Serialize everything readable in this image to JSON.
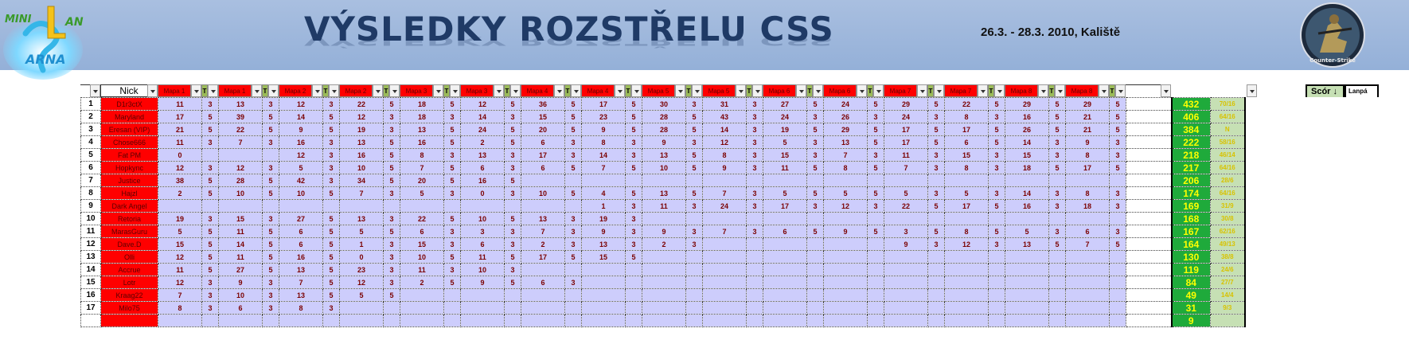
{
  "header": {
    "title": "VÝSLEDKY ROZSTŘELU CSS",
    "date": "26.3. - 28.3. 2010, Kaliště",
    "logo_text": "MINI LAN ARNA",
    "emblem_text": "Counter-Strike"
  },
  "colors": {
    "banner": "#a9bfe0",
    "title": "#1f3a66",
    "nick_cell": "#ff0000",
    "data_cell": "#cdcdfc",
    "score_cell": "#1faa3b",
    "score_text": "#ffff00",
    "lanpa_cell": "#c6e0b4"
  },
  "columns": {
    "nick": "Nick",
    "maps": [
      "Mapa 1",
      "Mapa 1",
      "Mapa 2",
      "Mapa 2",
      "Mapa 3",
      "Mapa 3",
      "Mapa 4",
      "Mapa 4",
      "Mapa 5",
      "Mapa 5",
      "Mapa 6",
      "Mapa 6",
      "Mapa 7",
      "Mapa 7",
      "Mapa 8",
      "Mapa 8"
    ],
    "t": "T",
    "score": "Scór",
    "lanpa": "Lanpá",
    "sort_icon": "↓"
  },
  "rows": [
    {
      "rank": "1",
      "nick": "D1r3ctX",
      "maps": [
        [
          "11",
          "3"
        ],
        [
          "13",
          "3"
        ],
        [
          "12",
          "3"
        ],
        [
          "22",
          "5"
        ],
        [
          "18",
          "5"
        ],
        [
          "12",
          "5"
        ],
        [
          "36",
          "5"
        ],
        [
          "17",
          "5"
        ],
        [
          "30",
          "3"
        ],
        [
          "31",
          "3"
        ],
        [
          "27",
          "5"
        ],
        [
          "24",
          "5"
        ],
        [
          "29",
          "5"
        ],
        [
          "22",
          "5"
        ],
        [
          "29",
          "5"
        ],
        [
          "29",
          "5"
        ]
      ],
      "score": "432",
      "lanpa": "70/16"
    },
    {
      "rank": "2",
      "nick": "Maryland",
      "maps": [
        [
          "17",
          "5"
        ],
        [
          "39",
          "5"
        ],
        [
          "14",
          "5"
        ],
        [
          "12",
          "3"
        ],
        [
          "18",
          "3"
        ],
        [
          "14",
          "3"
        ],
        [
          "15",
          "5"
        ],
        [
          "23",
          "5"
        ],
        [
          "28",
          "5"
        ],
        [
          "43",
          "3"
        ],
        [
          "24",
          "3"
        ],
        [
          "26",
          "3"
        ],
        [
          "24",
          "3"
        ],
        [
          "8",
          "3"
        ],
        [
          "16",
          "5"
        ],
        [
          "21",
          "5"
        ]
      ],
      "score": "406",
      "lanpa": "64/16"
    },
    {
      "rank": "3",
      "nick": "Eresan (VIP)",
      "maps": [
        [
          "21",
          "5"
        ],
        [
          "22",
          "5"
        ],
        [
          "9",
          "5"
        ],
        [
          "19",
          "3"
        ],
        [
          "13",
          "5"
        ],
        [
          "24",
          "5"
        ],
        [
          "20",
          "5"
        ],
        [
          "9",
          "5"
        ],
        [
          "28",
          "5"
        ],
        [
          "14",
          "3"
        ],
        [
          "19",
          "5"
        ],
        [
          "29",
          "5"
        ],
        [
          "17",
          "5"
        ],
        [
          "17",
          "5"
        ],
        [
          "26",
          "5"
        ],
        [
          "21",
          "5"
        ]
      ],
      "score": "384",
      "lanpa": "N"
    },
    {
      "rank": "4",
      "nick": "Chose666",
      "maps": [
        [
          "11",
          "3"
        ],
        [
          "7",
          "3"
        ],
        [
          "16",
          "3"
        ],
        [
          "13",
          "5"
        ],
        [
          "16",
          "5"
        ],
        [
          "2",
          "5"
        ],
        [
          "6",
          "3"
        ],
        [
          "8",
          "3"
        ],
        [
          "9",
          "3"
        ],
        [
          "12",
          "3"
        ],
        [
          "5",
          "3"
        ],
        [
          "13",
          "5"
        ],
        [
          "17",
          "5"
        ],
        [
          "6",
          "5"
        ],
        [
          "14",
          "3"
        ],
        [
          "9",
          "3"
        ]
      ],
      "score": "222",
      "lanpa": "58/16"
    },
    {
      "rank": "5",
      "nick": "Fat PM",
      "maps": [
        [
          "0",
          ""
        ],
        [
          "",
          ""
        ],
        [
          "12",
          "3"
        ],
        [
          "16",
          "5"
        ],
        [
          "8",
          "3"
        ],
        [
          "13",
          "3"
        ],
        [
          "17",
          "3"
        ],
        [
          "14",
          "3"
        ],
        [
          "13",
          "5"
        ],
        [
          "8",
          "3"
        ],
        [
          "15",
          "3"
        ],
        [
          "7",
          "3"
        ],
        [
          "11",
          "3"
        ],
        [
          "15",
          "3"
        ],
        [
          "15",
          "3"
        ],
        [
          "8",
          "3"
        ]
      ],
      "score": "218",
      "lanpa": "46/14"
    },
    {
      "rank": "6",
      "nick": "Hopkync",
      "maps": [
        [
          "12",
          "3"
        ],
        [
          "12",
          "3"
        ],
        [
          "5",
          "3"
        ],
        [
          "10",
          "5"
        ],
        [
          "7",
          "5"
        ],
        [
          "6",
          "3"
        ],
        [
          "6",
          "5"
        ],
        [
          "7",
          "5"
        ],
        [
          "10",
          "5"
        ],
        [
          "9",
          "3"
        ],
        [
          "11",
          "5"
        ],
        [
          "8",
          "5"
        ],
        [
          "7",
          "3"
        ],
        [
          "8",
          "3"
        ],
        [
          "18",
          "5"
        ],
        [
          "17",
          "5"
        ]
      ],
      "score": "217",
      "lanpa": "64/16"
    },
    {
      "rank": "7",
      "nick": "Justice",
      "maps": [
        [
          "38",
          "5"
        ],
        [
          "28",
          "5"
        ],
        [
          "42",
          "3"
        ],
        [
          "34",
          "5"
        ],
        [
          "20",
          "5"
        ],
        [
          "16",
          "5"
        ],
        [
          "",
          ""
        ],
        [
          "",
          ""
        ],
        [
          "",
          ""
        ],
        [
          "",
          ""
        ],
        [
          "",
          ""
        ],
        [
          "",
          ""
        ],
        [
          "",
          ""
        ],
        [
          "",
          ""
        ],
        [
          "",
          ""
        ],
        [
          "",
          ""
        ]
      ],
      "score": "206",
      "lanpa": "28/6"
    },
    {
      "rank": "8",
      "nick": "Hajzl",
      "maps": [
        [
          "2",
          "5"
        ],
        [
          "10",
          "5"
        ],
        [
          "10",
          "5"
        ],
        [
          "7",
          "3"
        ],
        [
          "5",
          "3"
        ],
        [
          "0",
          "3"
        ],
        [
          "10",
          "5"
        ],
        [
          "4",
          "5"
        ],
        [
          "13",
          "5"
        ],
        [
          "7",
          "3"
        ],
        [
          "5",
          "5"
        ],
        [
          "5",
          "5"
        ],
        [
          "5",
          "3"
        ],
        [
          "5",
          "3"
        ],
        [
          "14",
          "3"
        ],
        [
          "8",
          "3"
        ]
      ],
      "score": "174",
      "lanpa": "64/16"
    },
    {
      "rank": "9",
      "nick": "Dark Angel",
      "maps": [
        [
          "",
          ""
        ],
        [
          "",
          ""
        ],
        [
          "",
          ""
        ],
        [
          "",
          ""
        ],
        [
          "",
          ""
        ],
        [
          "",
          ""
        ],
        [
          "",
          ""
        ],
        [
          "1",
          "3"
        ],
        [
          "11",
          "3"
        ],
        [
          "24",
          "3"
        ],
        [
          "17",
          "3"
        ],
        [
          "12",
          "3"
        ],
        [
          "22",
          "5"
        ],
        [
          "17",
          "5"
        ],
        [
          "16",
          "3"
        ],
        [
          "18",
          "3"
        ]
      ],
      "score": "169",
      "lanpa": "31/9"
    },
    {
      "rank": "10",
      "nick": "Retoria",
      "maps": [
        [
          "19",
          "3"
        ],
        [
          "15",
          "3"
        ],
        [
          "27",
          "5"
        ],
        [
          "13",
          "3"
        ],
        [
          "22",
          "5"
        ],
        [
          "10",
          "5"
        ],
        [
          "13",
          "3"
        ],
        [
          "19",
          "3"
        ],
        [
          "",
          ""
        ],
        [
          "",
          ""
        ],
        [
          "",
          ""
        ],
        [
          "",
          ""
        ],
        [
          "",
          ""
        ],
        [
          "",
          ""
        ],
        [
          "",
          ""
        ],
        [
          "",
          ""
        ]
      ],
      "score": "168",
      "lanpa": "30/8"
    },
    {
      "rank": "11",
      "nick": "MarasGuru",
      "maps": [
        [
          "5",
          "5"
        ],
        [
          "11",
          "5"
        ],
        [
          "6",
          "5"
        ],
        [
          "5",
          "5"
        ],
        [
          "6",
          "3"
        ],
        [
          "3",
          "3"
        ],
        [
          "7",
          "3"
        ],
        [
          "9",
          "3"
        ],
        [
          "9",
          "3"
        ],
        [
          "7",
          "3"
        ],
        [
          "6",
          "5"
        ],
        [
          "9",
          "5"
        ],
        [
          "3",
          "5"
        ],
        [
          "8",
          "5"
        ],
        [
          "5",
          "3"
        ],
        [
          "6",
          "3"
        ]
      ],
      "score": "167",
      "lanpa": "62/16"
    },
    {
      "rank": "12",
      "nick": "Dave.D",
      "maps": [
        [
          "15",
          "5"
        ],
        [
          "14",
          "5"
        ],
        [
          "6",
          "5"
        ],
        [
          "1",
          "3"
        ],
        [
          "15",
          "3"
        ],
        [
          "6",
          "3"
        ],
        [
          "2",
          "3"
        ],
        [
          "13",
          "3"
        ],
        [
          "2",
          "3"
        ],
        [
          "",
          ""
        ],
        [
          "",
          ""
        ],
        [
          "",
          ""
        ],
        [
          "9",
          "3"
        ],
        [
          "12",
          "3"
        ],
        [
          "13",
          "5"
        ],
        [
          "7",
          "5"
        ]
      ],
      "score": "164",
      "lanpa": "49/13"
    },
    {
      "rank": "13",
      "nick": "Olli",
      "maps": [
        [
          "12",
          "5"
        ],
        [
          "11",
          "5"
        ],
        [
          "16",
          "5"
        ],
        [
          "0",
          "3"
        ],
        [
          "10",
          "5"
        ],
        [
          "11",
          "5"
        ],
        [
          "17",
          "5"
        ],
        [
          "15",
          "5"
        ],
        [
          "",
          ""
        ],
        [
          "",
          ""
        ],
        [
          "",
          ""
        ],
        [
          "",
          ""
        ],
        [
          "",
          ""
        ],
        [
          "",
          ""
        ],
        [
          "",
          ""
        ],
        [
          "",
          ""
        ]
      ],
      "score": "130",
      "lanpa": "38/8"
    },
    {
      "rank": "14",
      "nick": "Accrue",
      "maps": [
        [
          "11",
          "5"
        ],
        [
          "27",
          "5"
        ],
        [
          "13",
          "5"
        ],
        [
          "23",
          "3"
        ],
        [
          "11",
          "3"
        ],
        [
          "10",
          "3"
        ],
        [
          "",
          ""
        ],
        [
          "",
          ""
        ],
        [
          "",
          ""
        ],
        [
          "",
          ""
        ],
        [
          "",
          ""
        ],
        [
          "",
          ""
        ],
        [
          "",
          ""
        ],
        [
          "",
          ""
        ],
        [
          "",
          ""
        ],
        [
          "",
          ""
        ]
      ],
      "score": "119",
      "lanpa": "24/6"
    },
    {
      "rank": "15",
      "nick": "Lotr",
      "maps": [
        [
          "12",
          "3"
        ],
        [
          "9",
          "3"
        ],
        [
          "7",
          "5"
        ],
        [
          "12",
          "3"
        ],
        [
          "2",
          "5"
        ],
        [
          "9",
          "5"
        ],
        [
          "6",
          "3"
        ],
        [
          "",
          ""
        ],
        [
          "",
          ""
        ],
        [
          "",
          ""
        ],
        [
          "",
          ""
        ],
        [
          "",
          ""
        ],
        [
          "",
          ""
        ],
        [
          "",
          ""
        ],
        [
          "",
          ""
        ],
        [
          "",
          ""
        ]
      ],
      "score": "84",
      "lanpa": "27/7"
    },
    {
      "rank": "16",
      "nick": "Kraag22",
      "maps": [
        [
          "7",
          "3"
        ],
        [
          "10",
          "3"
        ],
        [
          "13",
          "5"
        ],
        [
          "5",
          "5"
        ],
        [
          "",
          ""
        ],
        [
          "",
          ""
        ],
        [
          "",
          ""
        ],
        [
          "",
          ""
        ],
        [
          "",
          ""
        ],
        [
          "",
          ""
        ],
        [
          "",
          ""
        ],
        [
          "",
          ""
        ],
        [
          "",
          ""
        ],
        [
          "",
          ""
        ],
        [
          "",
          ""
        ],
        [
          "",
          ""
        ]
      ],
      "score": "49",
      "lanpa": "14/4"
    },
    {
      "rank": "17",
      "nick": "Milo75",
      "maps": [
        [
          "8",
          "3"
        ],
        [
          "6",
          "3"
        ],
        [
          "8",
          "3"
        ],
        [
          "",
          ""
        ],
        [
          "",
          ""
        ],
        [
          "",
          ""
        ],
        [
          "",
          ""
        ],
        [
          "",
          ""
        ],
        [
          "",
          ""
        ],
        [
          "",
          ""
        ],
        [
          "",
          ""
        ],
        [
          "",
          ""
        ],
        [
          "",
          ""
        ],
        [
          "",
          ""
        ],
        [
          "",
          ""
        ],
        [
          "",
          ""
        ]
      ],
      "score": "31",
      "lanpa": "9/3"
    },
    {
      "rank": "",
      "nick": "",
      "maps": [
        [
          "",
          ""
        ],
        [
          "",
          ""
        ],
        [
          "",
          ""
        ],
        [
          "",
          ""
        ],
        [
          "",
          ""
        ],
        [
          "",
          ""
        ],
        [
          "",
          ""
        ],
        [
          "",
          ""
        ],
        [
          "",
          ""
        ],
        [
          "",
          ""
        ],
        [
          "",
          ""
        ],
        [
          "",
          ""
        ],
        [
          "",
          ""
        ],
        [
          "",
          ""
        ],
        [
          "",
          ""
        ],
        [
          "",
          ""
        ]
      ],
      "score": "9",
      "lanpa": ""
    }
  ]
}
